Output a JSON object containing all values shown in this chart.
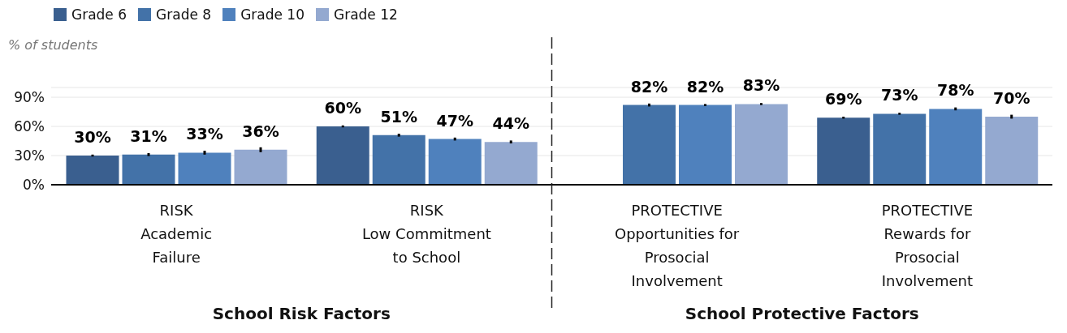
{
  "chart_data": {
    "type": "bar",
    "categories": [
      "RISK\nAcademic\nFailure",
      "RISK\nLow Commitment\nto School",
      "PROTECTIVE\nOpportunities for\nProsocial\nInvolvement",
      "PROTECTIVE\nRewards for\nProsocial\nInvolvement"
    ],
    "ylabel": "% of students",
    "series": [
      {
        "name": "Grade 6",
        "color": "#3a5f8f",
        "values": [
          30,
          60,
          null,
          69
        ],
        "errors": [
          1,
          1,
          null,
          1
        ],
        "value_labels": [
          "30%",
          "60%",
          null,
          "69%"
        ]
      },
      {
        "name": "Grade 8",
        "color": "#4372a8",
        "values": [
          31,
          51,
          82,
          73
        ],
        "errors": [
          1.5,
          1.5,
          1.5,
          1
        ],
        "value_labels": [
          "31%",
          "51%",
          "82%",
          "73%"
        ]
      },
      {
        "name": "Grade 10",
        "color": "#4f81bd",
        "values": [
          33,
          47,
          82,
          78
        ],
        "errors": [
          2,
          1.5,
          1,
          1.5
        ],
        "value_labels": [
          "33%",
          "47%",
          "82%",
          "78%"
        ]
      },
      {
        "name": "Grade 12",
        "color": "#94a9d0",
        "values": [
          36,
          44,
          83,
          70
        ],
        "errors": [
          2.5,
          1.5,
          1,
          2
        ],
        "value_labels": [
          "36%",
          "44%",
          "83%",
          "70%"
        ]
      }
    ],
    "ylim": [
      0,
      100
    ],
    "yticks": [
      {
        "value": 0,
        "label": "0%"
      },
      {
        "value": 30,
        "label": "30%"
      },
      {
        "value": 60,
        "label": "60%"
      },
      {
        "value": 90,
        "label": "90%"
      }
    ],
    "grid": "y",
    "legend": "top left",
    "annotations": [
      "School Risk Factors",
      "School Protective Factors"
    ]
  }
}
